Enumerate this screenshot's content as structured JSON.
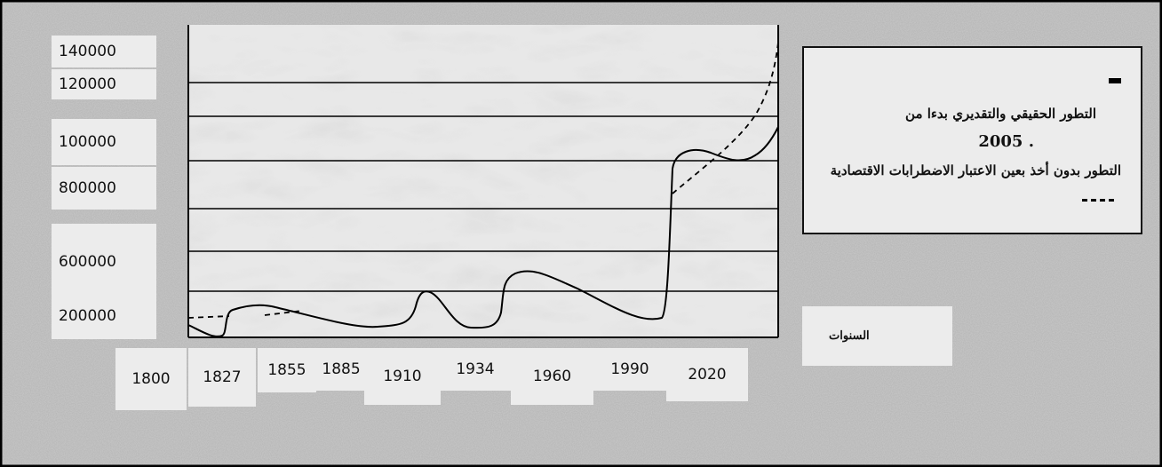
{
  "y_labels": [
    "140000",
    "120000",
    "100000",
    "800000",
    "600000",
    "200000"
  ],
  "x_labels": [
    "1800",
    "1827",
    "1855",
    "1885",
    "1910",
    "1934",
    "1960",
    "1990",
    "2020"
  ],
  "legend": {
    "solid": "التطور الحقيقي والتقديري بدءا من",
    "solid_year": "2005 .",
    "dashed": "التطور بدون أخذ بعين الاعتبار الاضطرابات الاقتصادية"
  },
  "x_axis_title": "السنوات"
}
